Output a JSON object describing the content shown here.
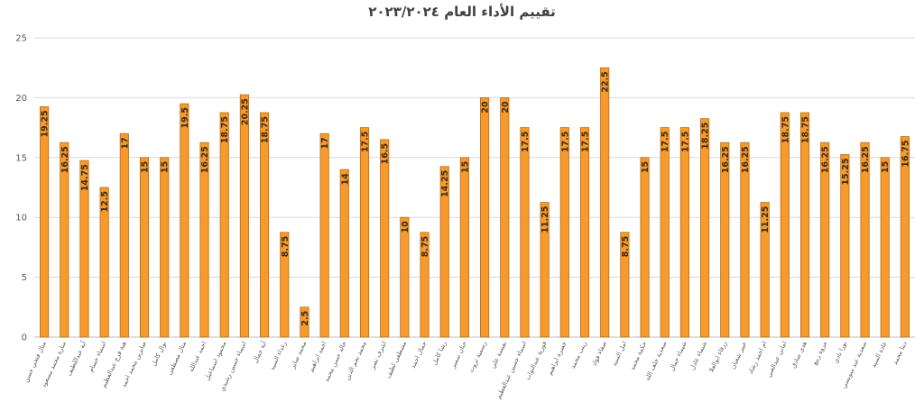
{
  "chart_data": {
    "type": "bar",
    "title": "تقييم الأداء العام ٢٠٢٣/٢٠٢٤",
    "xlabel": "",
    "ylabel": "",
    "ylim": [
      0,
      25
    ],
    "yticks": [
      "0",
      "5",
      "10",
      "15",
      "20",
      "25"
    ],
    "grid": true,
    "legend": "none",
    "bar_color": "#F79A2E",
    "bar_edge_color": "#B86A10",
    "categories": [
      "منال فتحي حسن",
      "سارة محمد مسعود",
      "آية عبداللطيف",
      "اسماء حسام",
      "هبة فرج عبدالعظيم",
      "صابرين محمد احمد",
      "نوال كامل",
      "منال مصطفى",
      "احمد عبدالله",
      "محمود اسماعيل",
      "اسماء حسين رشيدي",
      "آية جمال",
      "رغداء السيد",
      "محمد صابر",
      "احمد ابراهيم",
      "خالد حسن محمد",
      "محمد نجم الدين",
      "اشرف نصر",
      "مصطفى لطيف",
      "جمال احمد",
      "رشا كامل",
      "حنان سمير",
      "رسمية ثروت",
      "نفيسة علي",
      "اسماء حسين عبدالعظيم",
      "فوزية عبدالتواب",
      "خضرة ابراهيم",
      "زينب محمد",
      "صفاء فؤاد",
      "امل السيد",
      "حكمة محمد",
      "سعدية خلف الله",
      "شيماء جمال",
      "شيماء عادل",
      "زرقاء ابوالعلا",
      "عبير شعبان",
      "ام احمد رشاد",
      "اماني عبدالغني",
      "هدى صادق",
      "مروة ربيع",
      "نورا نادي",
      "سعدية عبد سويسي",
      "عادة السيد",
      "دينا محمد"
    ],
    "values": [
      19.25,
      16.25,
      14.75,
      12.5,
      17,
      15,
      15,
      19.5,
      16.25,
      18.75,
      20.25,
      18.75,
      8.75,
      2.5,
      17,
      14,
      17.5,
      16.5,
      10,
      8.75,
      14.25,
      15,
      20,
      20,
      17.5,
      11.25,
      17.5,
      17.5,
      22.5,
      8.75,
      15,
      17.5,
      17.5,
      18.25,
      16.25,
      16.25,
      11.25,
      18.75,
      18.75,
      16.25,
      15.25,
      16.25,
      15,
      16.75
    ],
    "value_labels": [
      "19.25",
      "16.25",
      "14.75",
      "12.5",
      "17",
      "15",
      "15",
      "19.5",
      "16.25",
      "18.75",
      "20.25",
      "18.75",
      "8.75",
      "2.5",
      "17",
      "14",
      "17.5",
      "16.5",
      "10",
      "8.75",
      "14.25",
      "15",
      "20",
      "20",
      "17.5",
      "11.25",
      "17.5",
      "17.5",
      "22.5",
      "8.75",
      "15",
      "17.5",
      "17.5",
      "18.25",
      "16.25",
      "16.25",
      "11.25",
      "18.75",
      "18.75",
      "16.25",
      "15.25",
      "16.25",
      "15",
      "16.75"
    ]
  }
}
